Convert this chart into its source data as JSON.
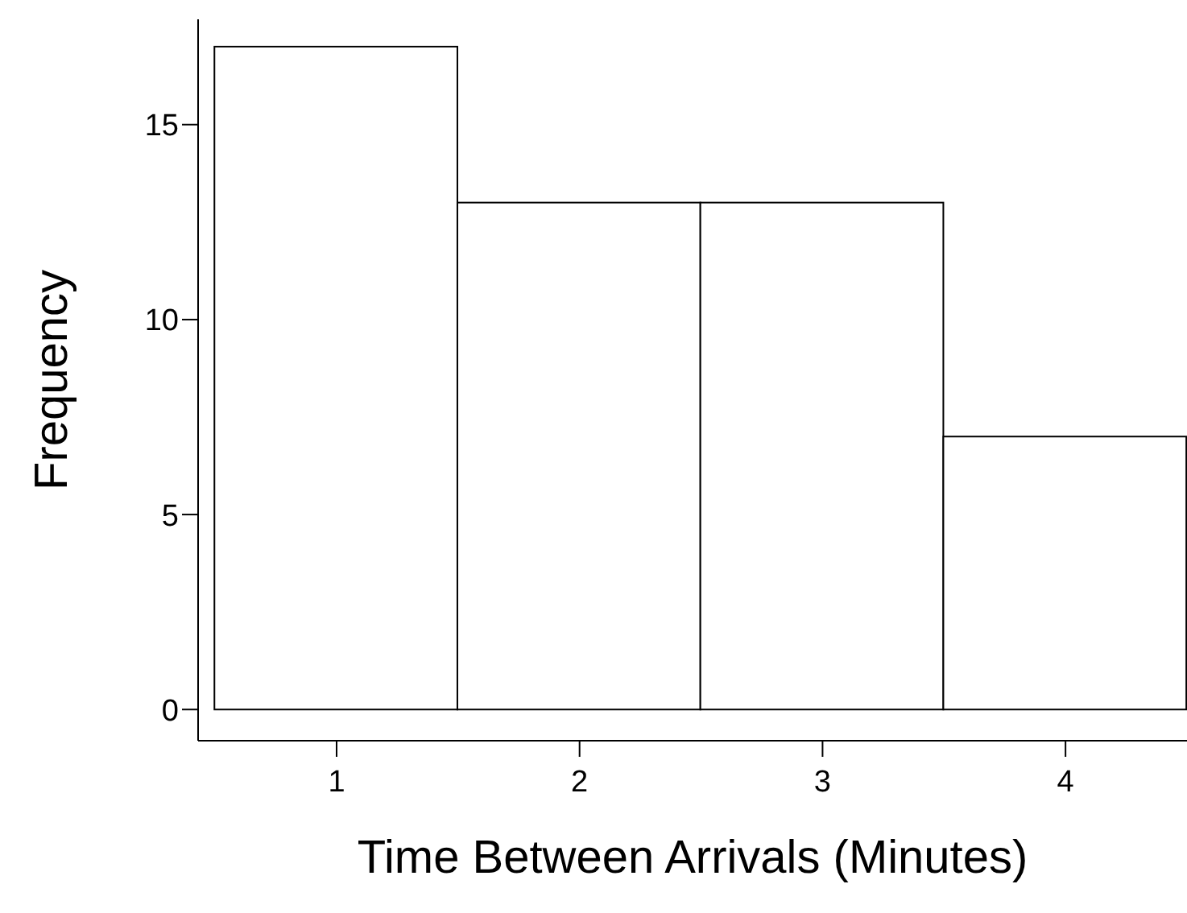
{
  "chart_data": {
    "type": "histogram",
    "xlabel": "Time Between Arrivals (Minutes)",
    "ylabel": "Frequency",
    "bins": [
      0.5,
      1.5,
      2.5,
      3.5,
      4.5
    ],
    "values": [
      17,
      13,
      13,
      7
    ],
    "color": "#ffffff",
    "xlim": [
      0.43,
      4.5
    ],
    "xticks": [
      1,
      2,
      3,
      4
    ],
    "ylim": [
      -0.8,
      17.7
    ],
    "yticks": [
      0,
      5,
      10,
      15
    ],
    "grid": false,
    "legend": false
  }
}
